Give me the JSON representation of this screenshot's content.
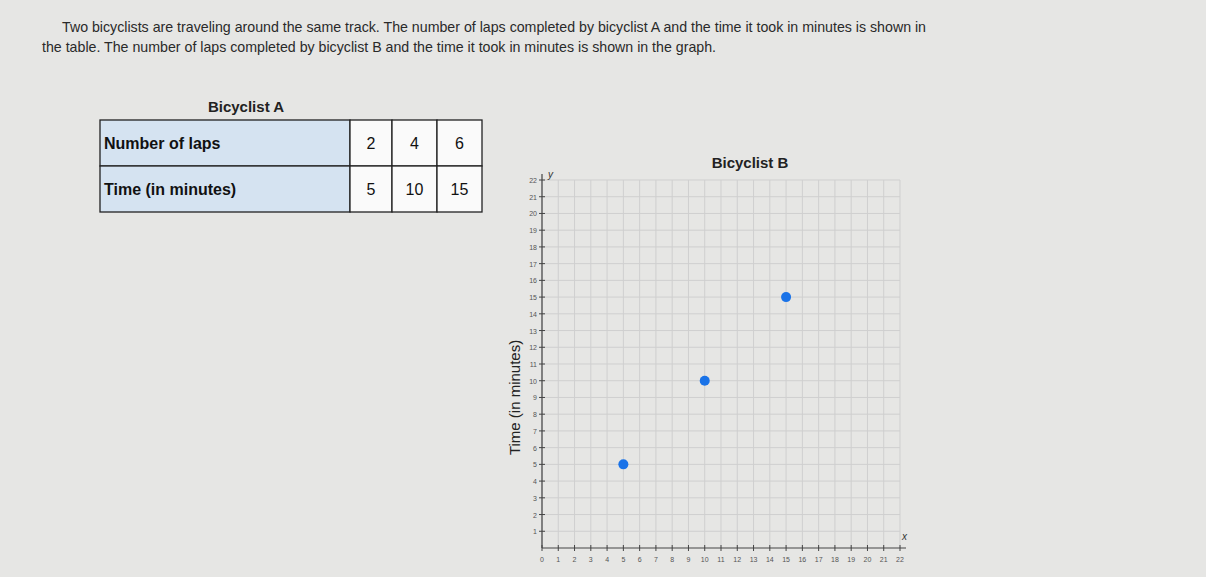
{
  "problem": {
    "lines": [
      "Two bicyclists are traveling around the same track. The number of laps completed by bicyclist A and the time it took in minutes is shown in",
      "the table. The number of laps completed by bicyclist B and the time it took in minutes is shown in the graph."
    ]
  },
  "table": {
    "title": "Bicyclist A",
    "rows": [
      [
        "Number of laps",
        2,
        4,
        6
      ],
      [
        "Time (in minutes)",
        5,
        10,
        15
      ]
    ]
  },
  "chart_data": {
    "type": "scatter",
    "title": "Bicyclist B",
    "y_label": "Time (in minutes)",
    "x_axis_name": "x",
    "y_axis_name": "y",
    "x": [
      5,
      10,
      15
    ],
    "values": [
      5,
      10,
      15
    ],
    "color": "#1a73e8",
    "xlim": [
      0,
      22
    ],
    "ylim": [
      0,
      22
    ],
    "xticks": [
      0,
      1,
      2,
      3,
      4,
      5,
      6,
      7,
      8,
      9,
      10,
      11,
      12,
      13,
      14,
      15,
      16,
      17,
      18,
      19,
      20,
      21,
      22
    ],
    "yticks": [
      1,
      2,
      3,
      4,
      5,
      6,
      7,
      8,
      9,
      10,
      11,
      12,
      13,
      14,
      15,
      16,
      17,
      18,
      19,
      20,
      21,
      22
    ],
    "grid": true
  }
}
